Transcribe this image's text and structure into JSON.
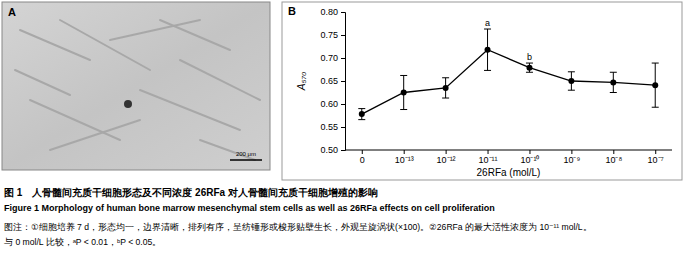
{
  "panel_a": {
    "label": "A",
    "scale_bar": "200 μm"
  },
  "chart_data": {
    "type": "line",
    "panel_label": "B",
    "categories": [
      "0",
      "10⁻¹³",
      "10⁻¹²",
      "10⁻¹¹",
      "10⁻¹⁰",
      "10⁻⁹",
      "10⁻⁸",
      "10⁻⁷"
    ],
    "values": [
      0.578,
      0.625,
      0.635,
      0.718,
      0.679,
      0.65,
      0.647,
      0.641
    ],
    "errors": [
      0.012,
      0.037,
      0.022,
      0.045,
      0.01,
      0.02,
      0.022,
      0.048
    ],
    "color": "#000000",
    "marker": "circle",
    "line_style": "solid",
    "x_label": "26RFa (mol/L)",
    "y_label": "A₅₇₀",
    "ylim": [
      0.5,
      0.8
    ],
    "yticks": [
      {
        "value": 0.5,
        "label": "0.50"
      },
      {
        "value": 0.55,
        "label": "0.55"
      },
      {
        "value": 0.6,
        "label": "0.60"
      },
      {
        "value": 0.65,
        "label": "0.65"
      },
      {
        "value": 0.7,
        "label": "0.70"
      },
      {
        "value": 0.75,
        "label": "0.75"
      },
      {
        "value": 0.8,
        "label": "0.80"
      }
    ],
    "grid": false,
    "annotations": [
      {
        "text": "a",
        "at": 3
      },
      {
        "text": "b",
        "at": 4
      }
    ]
  },
  "caption": {
    "line1": "图 1　人骨髓间充质干细胞形态及不同浓度 26RFa 对人骨髓间充质干细胞增殖的影响",
    "line2": "Figure 1   Morphology of human bone marrow mesenchymal stem cells as well as 26RFa effects on cell proliferation",
    "line3": "图注：①细胞培养 7 d，形态均一，边界清晰，排列有序，呈纺锤形或梭形贴壁生长，外观呈旋涡状(×100)。②26RFa 的最大活性浓度为 10⁻¹¹ mol/L。",
    "line4": "与 0 mol/L 比较，ᵃP < 0.01，ᵇP < 0.05。"
  }
}
